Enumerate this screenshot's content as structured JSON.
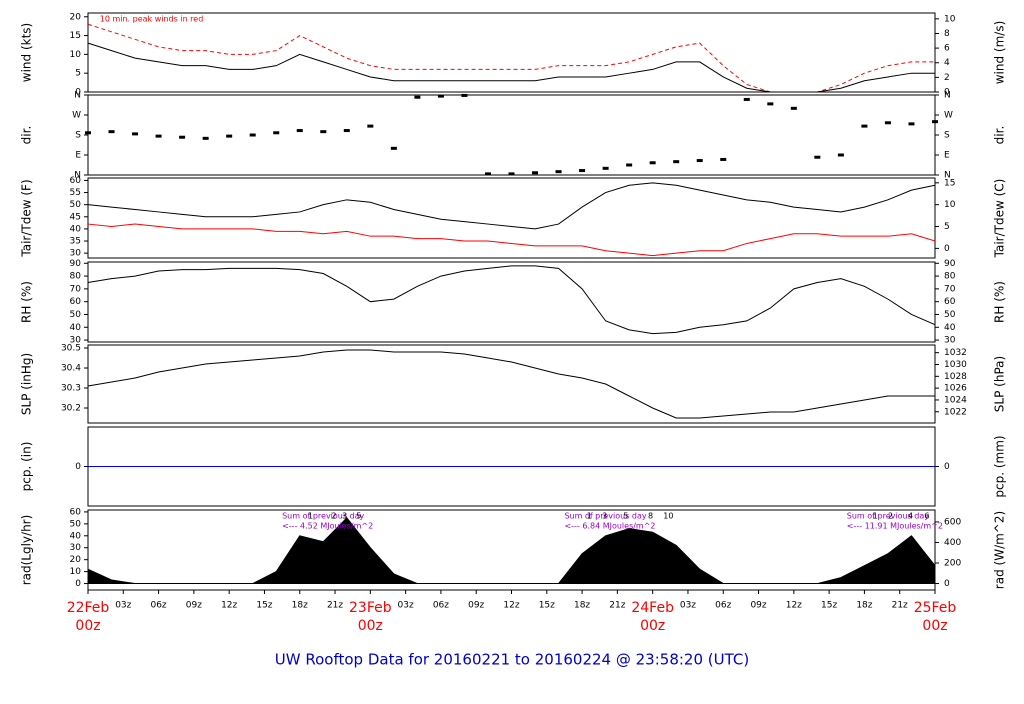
{
  "title": "UW Rooftop Data for 20160221  to  20160224 @ 23:58:20  (UTC)",
  "chart_data": [
    {
      "type": "line",
      "ylabel": "wind (kts)",
      "y2label": "wind (m/s)",
      "annotations": [
        {
          "x": 1,
          "text": "10 min. peak winds in red"
        }
      ],
      "x": [
        0,
        2,
        4,
        6,
        8,
        10,
        12,
        14,
        16,
        18,
        20,
        22,
        24,
        26,
        28,
        30,
        32,
        34,
        36,
        38,
        40,
        42,
        44,
        46,
        48,
        50,
        52,
        54,
        56,
        58,
        60,
        62,
        64,
        66,
        68,
        70,
        72
      ],
      "xlim": [
        0,
        72
      ],
      "ylim": [
        0,
        21
      ],
      "yticks": [
        0,
        5,
        10,
        15,
        20
      ],
      "y2lim": [
        0,
        10.8
      ],
      "y2ticks": [
        0,
        2,
        4,
        6,
        8,
        10
      ],
      "series": [
        {
          "color": "#ff0000",
          "dash": true,
          "values": [
            18,
            16,
            14,
            12,
            11,
            11,
            10,
            10,
            11,
            15,
            12,
            9,
            7,
            6,
            6,
            6,
            6,
            6,
            6,
            6,
            7,
            7,
            7,
            8,
            10,
            12,
            13,
            7,
            2,
            0,
            0,
            0,
            2,
            5,
            7,
            8,
            8
          ]
        },
        {
          "color": "#000000",
          "values": [
            13,
            11,
            9,
            8,
            7,
            7,
            6,
            6,
            7,
            10,
            8,
            6,
            4,
            3,
            3,
            3,
            3,
            3,
            3,
            3,
            4,
            4,
            4,
            5,
            6,
            8,
            8,
            4,
            1,
            0,
            0,
            0,
            1,
            3,
            4,
            5,
            5
          ]
        }
      ]
    },
    {
      "type": "scatter",
      "ylabel": "dir.",
      "y2label": "dir.",
      "x": [
        0,
        2,
        4,
        6,
        8,
        10,
        12,
        14,
        16,
        18,
        20,
        22,
        24,
        26,
        28,
        30,
        32,
        34,
        36,
        38,
        40,
        42,
        44,
        46,
        48,
        50,
        52,
        54,
        56,
        58,
        60,
        62,
        64,
        66,
        68,
        70,
        72
      ],
      "xlim": [
        0,
        72
      ],
      "ylim": [
        0,
        360
      ],
      "yticks": [
        {
          "value": 0,
          "label": "N"
        },
        {
          "value": 90,
          "label": "E"
        },
        {
          "value": 180,
          "label": "S"
        },
        {
          "value": 270,
          "label": "W"
        },
        {
          "value": 360,
          "label": "N"
        }
      ],
      "y2lim": [
        0,
        360
      ],
      "y2ticks": [
        {
          "value": 0,
          "label": "N"
        },
        {
          "value": 90,
          "label": "E"
        },
        {
          "value": 180,
          "label": "S"
        },
        {
          "value": 270,
          "label": "W"
        },
        {
          "value": 360,
          "label": "N"
        }
      ],
      "series": [
        {
          "color": "#000000",
          "values": [
            190,
            195,
            185,
            175,
            170,
            165,
            175,
            180,
            190,
            200,
            195,
            200,
            220,
            120,
            350,
            355,
            358,
            5,
            5,
            10,
            15,
            20,
            30,
            45,
            55,
            60,
            65,
            70,
            340,
            320,
            300,
            80,
            90,
            220,
            235,
            230,
            240
          ]
        }
      ]
    },
    {
      "type": "line",
      "ylabel": "Tair/Tdew (F)",
      "y2label": "Tair/Tdew (C)",
      "x": [
        0,
        2,
        4,
        6,
        8,
        10,
        12,
        14,
        16,
        18,
        20,
        22,
        24,
        26,
        28,
        30,
        32,
        34,
        36,
        38,
        40,
        42,
        44,
        46,
        48,
        50,
        52,
        54,
        56,
        58,
        60,
        62,
        64,
        66,
        68,
        70,
        72
      ],
      "xlim": [
        0,
        72
      ],
      "ylim": [
        28,
        61
      ],
      "yticks": [
        30,
        35,
        40,
        45,
        50,
        55,
        60
      ],
      "y2lim": [
        -2.2,
        16.1
      ],
      "y2ticks": [
        0,
        5,
        10,
        15
      ],
      "series": [
        {
          "color": "#000000",
          "values": [
            50,
            49,
            48,
            47,
            46,
            45,
            45,
            45,
            46,
            47,
            50,
            52,
            51,
            48,
            46,
            44,
            43,
            42,
            41,
            40,
            42,
            49,
            55,
            58,
            59,
            58,
            56,
            54,
            52,
            51,
            49,
            48,
            47,
            49,
            52,
            56,
            58
          ]
        },
        {
          "color": "#ff0000",
          "values": [
            42,
            41,
            42,
            41,
            40,
            40,
            40,
            40,
            39,
            39,
            38,
            39,
            37,
            37,
            36,
            36,
            35,
            35,
            34,
            33,
            33,
            33,
            31,
            30,
            29,
            30,
            31,
            31,
            34,
            36,
            38,
            38,
            37,
            37,
            37,
            38,
            35
          ]
        }
      ]
    },
    {
      "type": "line",
      "ylabel": "RH (%)",
      "y2label": "RH (%)",
      "x": [
        0,
        2,
        4,
        6,
        8,
        10,
        12,
        14,
        16,
        18,
        20,
        22,
        24,
        26,
        28,
        30,
        32,
        34,
        36,
        38,
        40,
        42,
        44,
        46,
        48,
        50,
        52,
        54,
        56,
        58,
        60,
        62,
        64,
        66,
        68,
        70,
        72
      ],
      "xlim": [
        0,
        72
      ],
      "ylim": [
        28.5,
        91
      ],
      "yticks": [
        30,
        40,
        50,
        60,
        70,
        80,
        90
      ],
      "y2lim": [
        28.5,
        91
      ],
      "y2ticks": [
        30,
        40,
        50,
        60,
        70,
        80,
        90
      ],
      "series": [
        {
          "color": "#000000",
          "values": [
            75,
            78,
            80,
            84,
            85,
            85,
            86,
            86,
            86,
            85,
            82,
            72,
            60,
            62,
            72,
            80,
            84,
            86,
            88,
            88,
            86,
            70,
            45,
            38,
            35,
            36,
            40,
            42,
            45,
            55,
            70,
            75,
            78,
            72,
            62,
            50,
            42
          ]
        }
      ]
    },
    {
      "type": "line",
      "ylabel": "SLP (inHg)",
      "y2label": "SLP (hPa)",
      "x": [
        0,
        2,
        4,
        6,
        8,
        10,
        12,
        14,
        16,
        18,
        20,
        22,
        24,
        26,
        28,
        30,
        32,
        34,
        36,
        38,
        40,
        42,
        44,
        46,
        48,
        50,
        52,
        54,
        56,
        58,
        60,
        62,
        64,
        66,
        68,
        70,
        72
      ],
      "xlim": [
        0,
        72
      ],
      "ylim": [
        30.125,
        30.515
      ],
      "yticks": [
        30.2,
        30.3,
        30.4,
        30.5
      ],
      "y2lim": [
        1020.1,
        1033.3
      ],
      "y2ticks": [
        1022,
        1024,
        1026,
        1028,
        1030,
        1032
      ],
      "series": [
        {
          "color": "#000000",
          "values": [
            30.31,
            30.33,
            30.35,
            30.38,
            30.4,
            30.42,
            30.43,
            30.44,
            30.45,
            30.46,
            30.48,
            30.49,
            30.49,
            30.48,
            30.48,
            30.48,
            30.47,
            30.45,
            30.43,
            30.4,
            30.37,
            30.35,
            30.32,
            30.26,
            30.2,
            30.15,
            30.15,
            30.16,
            30.17,
            30.18,
            30.18,
            30.2,
            30.22,
            30.24,
            30.26,
            30.26,
            30.26
          ]
        }
      ]
    },
    {
      "type": "line",
      "ylabel": "pcp. (in)",
      "y2label": "pcp. (mm)",
      "x": [
        0,
        72
      ],
      "xlim": [
        0,
        72
      ],
      "ylim": [
        -1,
        1
      ],
      "yticks": [
        0
      ],
      "y2lim": [
        -25.4,
        25.4
      ],
      "y2ticks": [
        0
      ],
      "series": [
        {
          "color": "#0000ff",
          "values": [
            0,
            0
          ]
        }
      ]
    },
    {
      "type": "area",
      "ylabel": "rad(Lgly/hr)",
      "y2label": "rad (W/m^2)",
      "annotations": [
        {
          "x": 16.5,
          "text": "Sum of previous day",
          "color": "#9900cc"
        },
        {
          "x": 16.5,
          "text": "<--- 4.52 MJoules/m^2",
          "color": "#9900cc",
          "row": 2
        },
        {
          "x": 40.5,
          "text": "Sum of previous day",
          "color": "#9900cc"
        },
        {
          "x": 40.5,
          "text": "<--- 6.84 MJoules/m^2",
          "color": "#9900cc",
          "row": 2
        },
        {
          "x": 64.5,
          "text": "Sum of previous day",
          "color": "#9900cc"
        },
        {
          "x": 64.5,
          "text": "<--- 11.91 MJoules/m^2",
          "color": "#9900cc",
          "row": 2
        },
        {
          "x": 18.7,
          "text": "1"
        },
        {
          "x": 20.7,
          "text": "2"
        },
        {
          "x": 21.6,
          "text": "3"
        },
        {
          "x": 22.8,
          "text": "5"
        },
        {
          "x": 42.4,
          "text": "1"
        },
        {
          "x": 43.7,
          "text": "3"
        },
        {
          "x": 45.5,
          "text": "5"
        },
        {
          "x": 47.6,
          "text": "8"
        },
        {
          "x": 48.9,
          "text": "10"
        },
        {
          "x": 66.7,
          "text": "1"
        },
        {
          "x": 68.0,
          "text": "2"
        },
        {
          "x": 69.7,
          "text": "4"
        },
        {
          "x": 71.1,
          "text": "6"
        }
      ],
      "x": [
        0,
        2,
        4,
        6,
        8,
        10,
        12,
        14,
        16,
        18,
        20,
        22,
        24,
        26,
        28,
        30,
        32,
        34,
        36,
        38,
        40,
        42,
        44,
        46,
        48,
        50,
        52,
        54,
        56,
        58,
        60,
        62,
        64,
        66,
        68,
        70,
        72
      ],
      "xlim": [
        0,
        72
      ],
      "ylim": [
        -5.4,
        61.6
      ],
      "yticks": [
        0,
        10,
        20,
        30,
        40,
        50,
        60
      ],
      "y2lim": [
        -63,
        716
      ],
      "y2ticks": [
        0,
        200,
        400,
        600
      ],
      "xticks": [
        {
          "value": 0,
          "label": "22Feb 00z"
        },
        {
          "value": 3,
          "label": "03z"
        },
        {
          "value": 6,
          "label": "06z"
        },
        {
          "value": 9,
          "label": "09z"
        },
        {
          "value": 12,
          "label": "12z"
        },
        {
          "value": 15,
          "label": "15z"
        },
        {
          "value": 18,
          "label": "18z"
        },
        {
          "value": 21,
          "label": "21z"
        },
        {
          "value": 24,
          "label": "23Feb 00z"
        },
        {
          "value": 27,
          "label": "03z"
        },
        {
          "value": 30,
          "label": "06z"
        },
        {
          "value": 33,
          "label": "09z"
        },
        {
          "value": 36,
          "label": "12z"
        },
        {
          "value": 39,
          "label": "15z"
        },
        {
          "value": 42,
          "label": "18z"
        },
        {
          "value": 45,
          "label": "21z"
        },
        {
          "value": 48,
          "label": "24Feb 00z"
        },
        {
          "value": 51,
          "label": "03z"
        },
        {
          "value": 54,
          "label": "06z"
        },
        {
          "value": 57,
          "label": "09z"
        },
        {
          "value": 60,
          "label": "12z"
        },
        {
          "value": 63,
          "label": "15z"
        },
        {
          "value": 66,
          "label": "18z"
        },
        {
          "value": 69,
          "label": "21z"
        },
        {
          "value": 72,
          "label": "25Feb 00z"
        }
      ],
      "series": [
        {
          "color": "#000000",
          "values": [
            12,
            3,
            0,
            0,
            0,
            0,
            0,
            0,
            10,
            40,
            35,
            55,
            30,
            8,
            0,
            0,
            0,
            0,
            0,
            0,
            0,
            25,
            40,
            46,
            43,
            32,
            12,
            0,
            0,
            0,
            0,
            0,
            5,
            15,
            25,
            40,
            15
          ]
        }
      ]
    }
  ]
}
